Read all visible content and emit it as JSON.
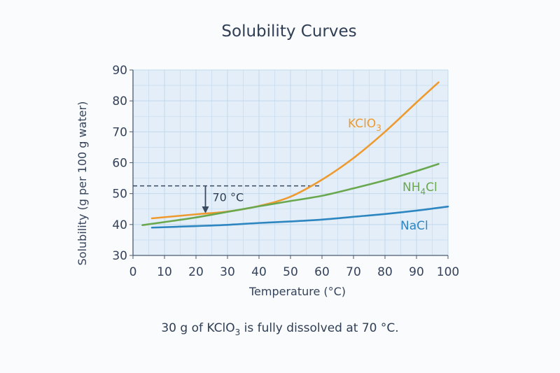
{
  "chart_data": {
    "type": "line",
    "title": "Solubility Curves",
    "xlabel": "Temperature (°C)",
    "ylabel": "Solubility (g per 100 g water)",
    "xlim": [
      0,
      100
    ],
    "ylim": [
      30,
      90
    ],
    "x_ticks": [
      "0",
      "10",
      "20",
      "30",
      "40",
      "50",
      "60",
      "70",
      "80",
      "90",
      "100"
    ],
    "y_ticks": [
      "30",
      "40",
      "50",
      "60",
      "70",
      "80",
      "90"
    ],
    "grid": true,
    "series": [
      {
        "name": "KClO3",
        "label_main": "KClO",
        "label_sub": "3",
        "color": "#ef9a2e",
        "x": [
          6,
          20,
          30,
          40,
          50,
          60,
          70,
          80,
          90,
          97
        ],
        "y": [
          42,
          43.3,
          44.2,
          46,
          49,
          54.5,
          61.5,
          70,
          79.5,
          86
        ]
      },
      {
        "name": "NH4Cl",
        "label_main": "NH",
        "label_sub": "4",
        "label_after": "Cl",
        "color": "#6aa84f",
        "x": [
          3,
          10,
          20,
          30,
          40,
          50,
          60,
          70,
          80,
          90,
          97
        ],
        "y": [
          39.8,
          40.8,
          42.3,
          44.1,
          45.9,
          47.6,
          49.3,
          51.7,
          54.3,
          57.3,
          59.6
        ]
      },
      {
        "name": "NaCl",
        "label_main": "NaCl",
        "color": "#2e86c1",
        "x": [
          6,
          20,
          30,
          40,
          50,
          60,
          70,
          80,
          90,
          100
        ],
        "y": [
          39,
          39.5,
          39.9,
          40.5,
          41,
          41.6,
          42.5,
          43.4,
          44.5,
          45.8
        ]
      }
    ],
    "annotation": {
      "label": "70 °C",
      "arrow_x": 23,
      "y_level": 52.5,
      "line_x_end": 60
    },
    "caption": {
      "before": "30 g of KClO",
      "sub": "3",
      "after": " is fully dissolved at 70 °C."
    }
  },
  "colors": {
    "plot_bg": "#e3eef8",
    "grid": "#c2d8ec",
    "axis": "#4a5a70",
    "marker": "#3a4a60"
  }
}
